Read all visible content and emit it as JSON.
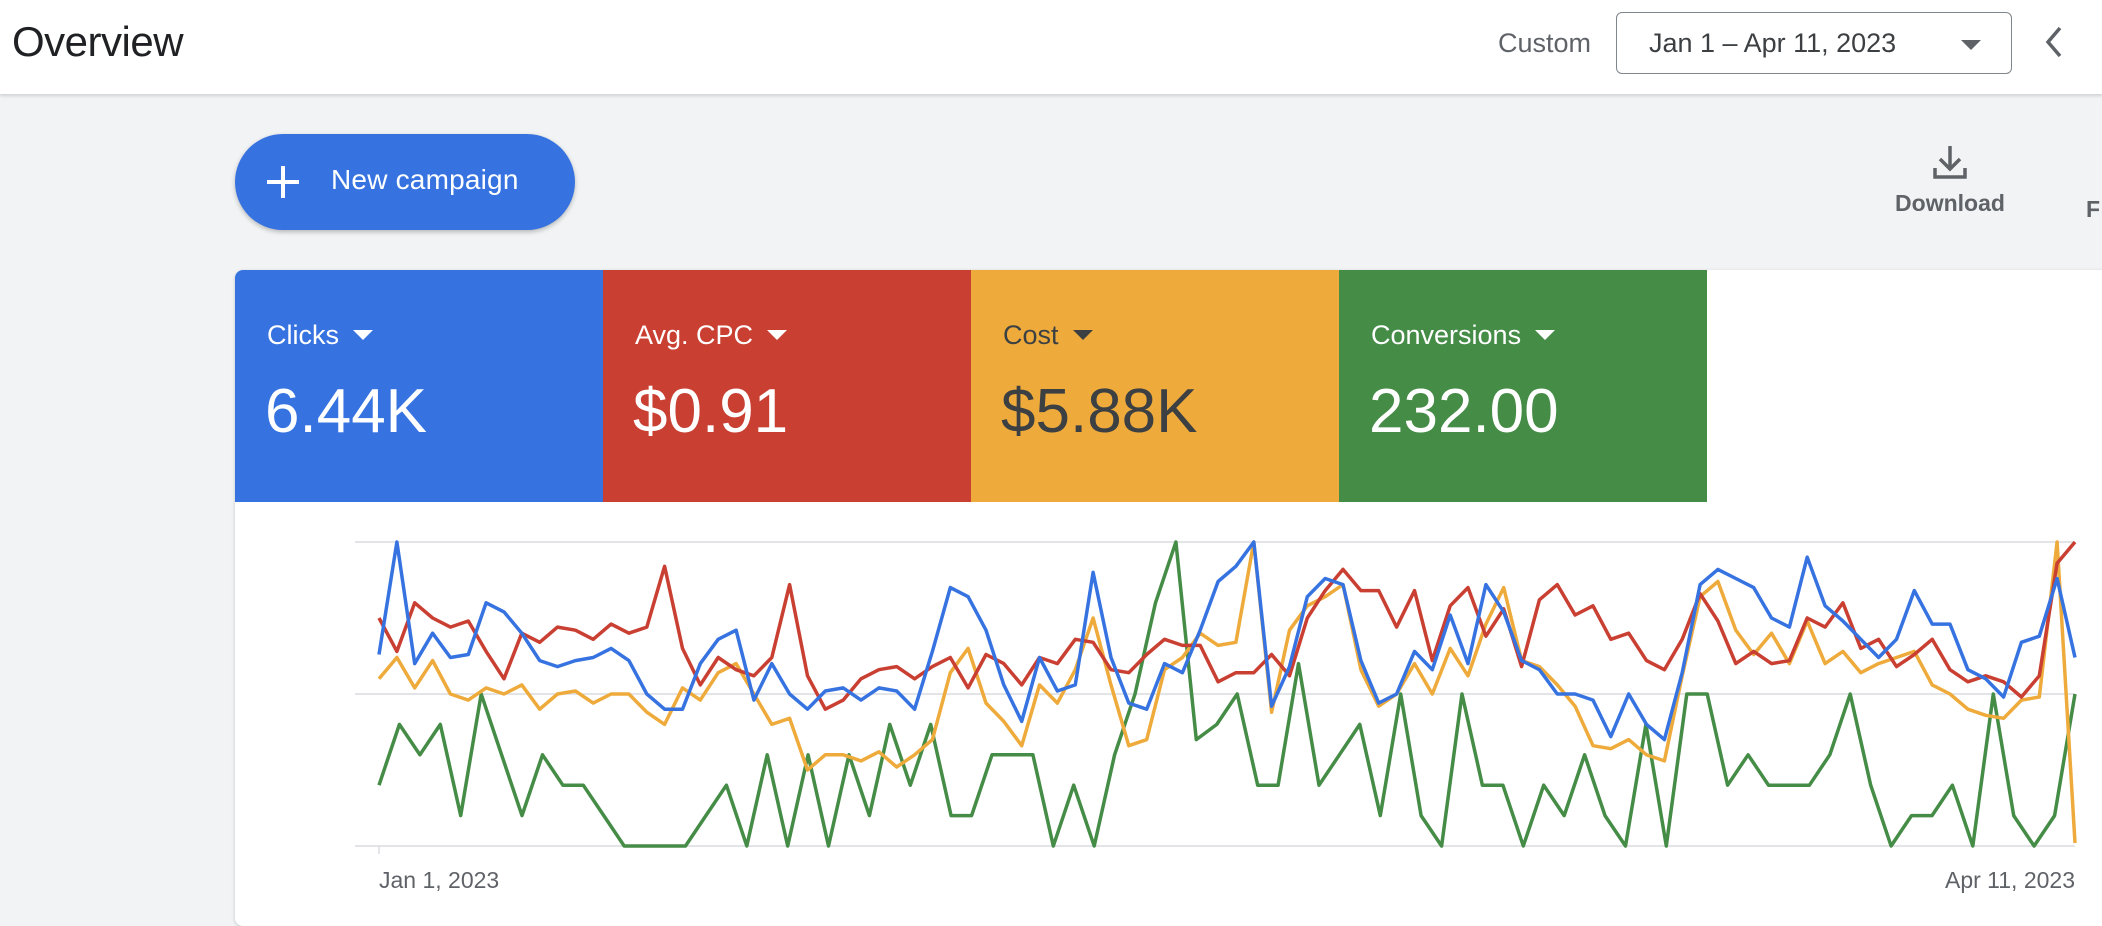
{
  "header": {
    "title": "Overview",
    "range_label": "Custom",
    "date_range": "Jan 1 – Apr 11, 2023"
  },
  "actions": {
    "new_campaign": "New campaign",
    "download": "Download",
    "clipped_item": "F"
  },
  "scorecards": [
    {
      "metric": "Clicks",
      "value": "6.44K",
      "color": "#3673e1"
    },
    {
      "metric": "Avg. CPC",
      "value": "$0.91",
      "color": "#c93f32"
    },
    {
      "metric": "Cost",
      "value": "$5.88K",
      "color": "#eeab3c"
    },
    {
      "metric": "Conversions",
      "value": "232.00",
      "color": "#458c47"
    }
  ],
  "chart_data": {
    "type": "line",
    "x_start": "Jan 1, 2023",
    "x_end": "Apr 11, 2023",
    "x_tick_labels": [
      "Jan 1, 2023",
      "Apr 11, 2023"
    ],
    "grid": true,
    "normalized_scale": true,
    "note_values": "values estimated per day, each series scaled 0–1 to its own range",
    "series": [
      {
        "name": "Clicks",
        "color": "#3673e1",
        "values": [
          0.63,
          1.0,
          0.6,
          0.7,
          0.62,
          0.63,
          0.8,
          0.77,
          0.7,
          0.61,
          0.59,
          0.61,
          0.62,
          0.65,
          0.61,
          0.5,
          0.45,
          0.45,
          0.6,
          0.68,
          0.71,
          0.48,
          0.6,
          0.5,
          0.45,
          0.51,
          0.52,
          0.48,
          0.52,
          0.51,
          0.45,
          0.64,
          0.85,
          0.82,
          0.71,
          0.53,
          0.41,
          0.62,
          0.51,
          0.53,
          0.9,
          0.62,
          0.47,
          0.45,
          0.6,
          0.57,
          0.71,
          0.87,
          0.92,
          1.0,
          0.46,
          0.59,
          0.82,
          0.88,
          0.86,
          0.61,
          0.47,
          0.5,
          0.64,
          0.58,
          0.76,
          0.6,
          0.86,
          0.77,
          0.61,
          0.58,
          0.5,
          0.5,
          0.48,
          0.36,
          0.5,
          0.4,
          0.35,
          0.57,
          0.86,
          0.91,
          0.88,
          0.85,
          0.75,
          0.72,
          0.95,
          0.79,
          0.74,
          0.68,
          0.62,
          0.68,
          0.84,
          0.73,
          0.73,
          0.58,
          0.55,
          0.49,
          0.67,
          0.69,
          0.88,
          0.62
        ]
      },
      {
        "name": "Avg. CPC",
        "color": "#c93f32",
        "values": [
          0.75,
          0.64,
          0.8,
          0.75,
          0.72,
          0.74,
          0.64,
          0.55,
          0.7,
          0.67,
          0.72,
          0.71,
          0.68,
          0.73,
          0.7,
          0.72,
          0.92,
          0.65,
          0.53,
          0.62,
          0.58,
          0.56,
          0.62,
          0.86,
          0.56,
          0.45,
          0.48,
          0.55,
          0.58,
          0.59,
          0.55,
          0.59,
          0.62,
          0.52,
          0.63,
          0.6,
          0.53,
          0.62,
          0.6,
          0.68,
          0.67,
          0.58,
          0.57,
          0.63,
          0.68,
          0.66,
          0.66,
          0.54,
          0.57,
          0.57,
          0.63,
          0.56,
          0.75,
          0.84,
          0.91,
          0.84,
          0.84,
          0.72,
          0.84,
          0.61,
          0.79,
          0.85,
          0.69,
          0.78,
          0.59,
          0.81,
          0.86,
          0.76,
          0.79,
          0.68,
          0.7,
          0.61,
          0.58,
          0.68,
          0.83,
          0.74,
          0.6,
          0.64,
          0.6,
          0.61,
          0.75,
          0.72,
          0.8,
          0.65,
          0.68,
          0.59,
          0.63,
          0.68,
          0.58,
          0.54,
          0.56,
          0.54,
          0.49,
          0.56,
          0.93,
          1.0
        ]
      },
      {
        "name": "Cost",
        "color": "#eeab3c",
        "values": [
          0.55,
          0.62,
          0.52,
          0.61,
          0.5,
          0.48,
          0.52,
          0.5,
          0.53,
          0.45,
          0.5,
          0.51,
          0.47,
          0.5,
          0.5,
          0.44,
          0.4,
          0.52,
          0.48,
          0.57,
          0.6,
          0.5,
          0.4,
          0.42,
          0.25,
          0.3,
          0.3,
          0.28,
          0.31,
          0.26,
          0.3,
          0.35,
          0.57,
          0.65,
          0.47,
          0.41,
          0.33,
          0.53,
          0.47,
          0.58,
          0.75,
          0.53,
          0.33,
          0.35,
          0.58,
          0.62,
          0.7,
          0.66,
          0.67,
          1.0,
          0.44,
          0.71,
          0.79,
          0.82,
          0.86,
          0.58,
          0.46,
          0.5,
          0.6,
          0.5,
          0.65,
          0.56,
          0.73,
          0.85,
          0.61,
          0.59,
          0.53,
          0.46,
          0.33,
          0.32,
          0.35,
          0.3,
          0.28,
          0.56,
          0.82,
          0.87,
          0.71,
          0.63,
          0.7,
          0.6,
          0.74,
          0.6,
          0.64,
          0.57,
          0.6,
          0.62,
          0.64,
          0.53,
          0.5,
          0.45,
          0.43,
          0.42,
          0.48,
          0.49,
          1.0,
          0.01
        ]
      },
      {
        "name": "Conversions",
        "color": "#458c47",
        "values": [
          0.2,
          0.4,
          0.3,
          0.4,
          0.1,
          0.5,
          0.3,
          0.1,
          0.3,
          0.2,
          0.2,
          0.1,
          0.0,
          0.0,
          0.0,
          0.0,
          0.1,
          0.2,
          0.0,
          0.3,
          0.0,
          0.3,
          0.0,
          0.3,
          0.1,
          0.4,
          0.2,
          0.4,
          0.1,
          0.1,
          0.3,
          0.3,
          0.3,
          0.0,
          0.2,
          0.0,
          0.3,
          0.5,
          0.8,
          1.0,
          0.35,
          0.4,
          0.5,
          0.2,
          0.2,
          0.6,
          0.2,
          0.3,
          0.4,
          0.1,
          0.5,
          0.1,
          0.0,
          0.5,
          0.2,
          0.2,
          0.0,
          0.2,
          0.1,
          0.3,
          0.1,
          0.0,
          0.4,
          0.0,
          0.5,
          0.5,
          0.2,
          0.3,
          0.2,
          0.2,
          0.2,
          0.3,
          0.5,
          0.2,
          0.0,
          0.1,
          0.1,
          0.2,
          0.0,
          0.5,
          0.1,
          0.0,
          0.1,
          0.5
        ]
      }
    ]
  }
}
